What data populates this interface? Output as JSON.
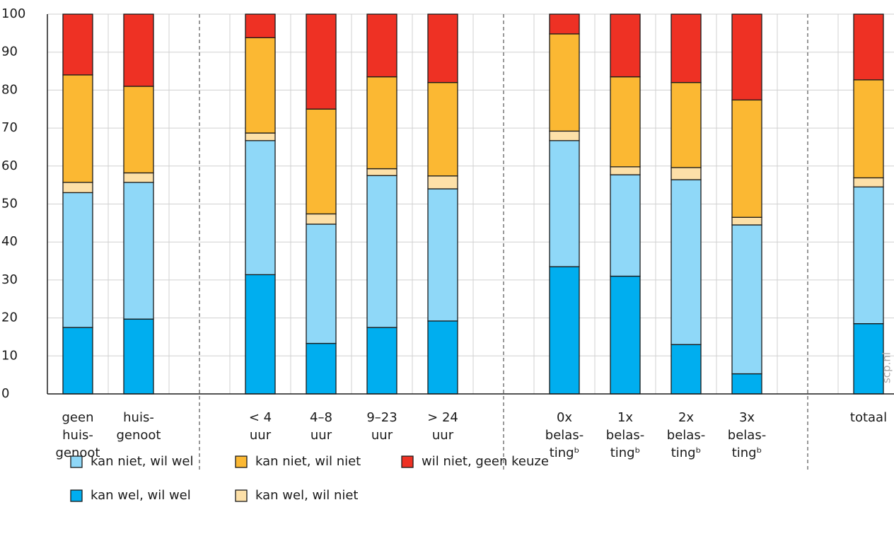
{
  "chart_data": {
    "type": "stacked_bar",
    "categories": [
      [
        "geen",
        "huis-",
        "genoot"
      ],
      [
        "huis-",
        "genoot"
      ],
      [
        "< 4",
        "uur"
      ],
      [
        "4–8",
        "uur"
      ],
      [
        "9–23",
        "uur"
      ],
      [
        "> 24",
        "uur"
      ],
      [
        "0x",
        "belas-",
        "tingᵇ"
      ],
      [
        "1x",
        "belas-",
        "tingᵇ"
      ],
      [
        "2x",
        "belas-",
        "tingᵇ"
      ],
      [
        "3x",
        "belas-",
        "tingᵇ"
      ],
      [
        "totaal"
      ]
    ],
    "series": [
      {
        "name": "kan wel, wil wel",
        "color": "#00aeef",
        "values": [
          17.5,
          19.7,
          31.4,
          13.3,
          17.5,
          19.2,
          33.5,
          31,
          13,
          5.3,
          18.5
        ]
      },
      {
        "name": "kan niet, wil wel",
        "color": "#8fd8f8",
        "values": [
          35.5,
          36,
          35.3,
          31.4,
          40,
          34.8,
          33.2,
          26.7,
          43.4,
          39.2,
          36
        ]
      },
      {
        "name": "kan wel, wil niet",
        "color": "#fde0a8",
        "values": [
          2.7,
          2.5,
          2,
          2.7,
          1.8,
          3.4,
          2.5,
          2.1,
          3.2,
          2,
          2.4
        ]
      },
      {
        "name": "kan niet, wil niet",
        "color": "#fbb833",
        "values": [
          28.3,
          22.8,
          25.1,
          27.6,
          24.2,
          24.6,
          25.6,
          23.7,
          22.4,
          30.9,
          25.8
        ]
      },
      {
        "name": "wil niet, geen keuze",
        "color": "#ee3124",
        "values": [
          16,
          19,
          6.2,
          25,
          16.5,
          18,
          5.2,
          16.5,
          18,
          22.6,
          17.3
        ]
      }
    ],
    "ylim": [
      0,
      100
    ],
    "yticks": [
      0,
      10,
      20,
      30,
      40,
      50,
      60,
      70,
      80,
      90,
      100
    ],
    "grid": true,
    "watermark": "scp.nl"
  }
}
